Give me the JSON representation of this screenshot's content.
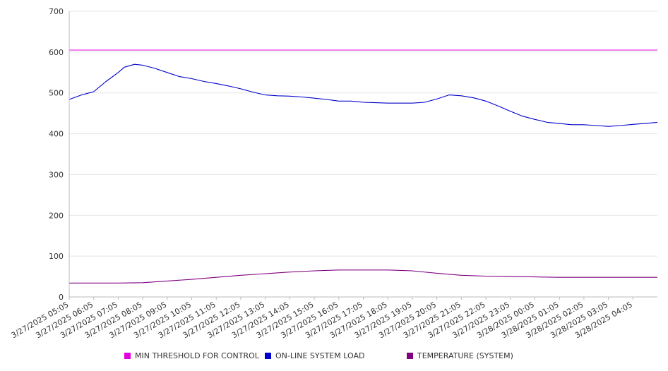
{
  "chart_data": {
    "type": "line",
    "title": "",
    "xlabel": "",
    "ylabel": "",
    "ylim": [
      0,
      700
    ],
    "yticks": [
      "0",
      "100",
      "200",
      "300",
      "400",
      "500",
      "600",
      "700"
    ],
    "grid": true,
    "legend_position": "bottom",
    "x_start": "3/27/2025 05:05",
    "x_end": "3/28/2025 05:05",
    "x_ticks": [
      "3/27/2025 05:05",
      "3/27/2025 06:05",
      "3/27/2025 07:05",
      "3/27/2025 08:05",
      "3/27/2025 09:05",
      "3/27/2025 10:05",
      "3/27/2025 11:05",
      "3/27/2025 12:05",
      "3/27/2025 13:05",
      "3/27/2025 14:05",
      "3/27/2025 15:05",
      "3/27/2025 16:05",
      "3/27/2025 17:05",
      "3/27/2025 18:05",
      "3/27/2025 19:05",
      "3/27/2025 20:05",
      "3/27/2025 21:05",
      "3/27/2025 22:05",
      "3/27/2025 23:05",
      "3/28/2025 00:05",
      "3/28/2025 01:05",
      "3/28/2025 02:05",
      "3/28/2025 03:05",
      "3/28/2025 04:05"
    ],
    "series": [
      {
        "name": "MIN THRESHOLD FOR CONTROL",
        "color": "#e000e0",
        "points": [
          [
            "3/27/2025 05:05",
            605
          ],
          [
            "3/28/2025 05:05",
            605
          ]
        ]
      },
      {
        "name": "ON-LINE SYSTEM LOAD",
        "color": "#0000cc",
        "points": [
          [
            "3/27/2025 05:05",
            484
          ],
          [
            "3/27/2025 05:35",
            495
          ],
          [
            "3/27/2025 06:05",
            503
          ],
          [
            "3/27/2025 06:35",
            528
          ],
          [
            "3/27/2025 07:05",
            550
          ],
          [
            "3/27/2025 07:20",
            563
          ],
          [
            "3/27/2025 07:45",
            570
          ],
          [
            "3/27/2025 08:05",
            568
          ],
          [
            "3/27/2025 08:35",
            560
          ],
          [
            "3/27/2025 09:05",
            550
          ],
          [
            "3/27/2025 09:35",
            540
          ],
          [
            "3/27/2025 10:05",
            535
          ],
          [
            "3/27/2025 10:35",
            528
          ],
          [
            "3/27/2025 11:05",
            523
          ],
          [
            "3/27/2025 11:35",
            517
          ],
          [
            "3/27/2025 12:05",
            510
          ],
          [
            "3/27/2025 12:35",
            502
          ],
          [
            "3/27/2025 13:05",
            495
          ],
          [
            "3/27/2025 13:35",
            493
          ],
          [
            "3/27/2025 14:05",
            492
          ],
          [
            "3/27/2025 14:35",
            490
          ],
          [
            "3/27/2025 15:05",
            487
          ],
          [
            "3/27/2025 15:35",
            484
          ],
          [
            "3/27/2025 16:05",
            480
          ],
          [
            "3/27/2025 16:35",
            480
          ],
          [
            "3/27/2025 17:05",
            477
          ],
          [
            "3/27/2025 17:35",
            476
          ],
          [
            "3/27/2025 18:05",
            475
          ],
          [
            "3/27/2025 18:35",
            475
          ],
          [
            "3/27/2025 19:05",
            475
          ],
          [
            "3/27/2025 19:35",
            477
          ],
          [
            "3/27/2025 20:05",
            485
          ],
          [
            "3/27/2025 20:35",
            495
          ],
          [
            "3/27/2025 21:05",
            493
          ],
          [
            "3/27/2025 21:35",
            488
          ],
          [
            "3/27/2025 22:05",
            480
          ],
          [
            "3/27/2025 22:35",
            468
          ],
          [
            "3/27/2025 23:05",
            455
          ],
          [
            "3/27/2025 23:35",
            443
          ],
          [
            "3/28/2025 00:05",
            435
          ],
          [
            "3/28/2025 00:35",
            428
          ],
          [
            "3/28/2025 01:05",
            425
          ],
          [
            "3/28/2025 01:35",
            422
          ],
          [
            "3/28/2025 02:05",
            422
          ],
          [
            "3/28/2025 02:35",
            420
          ],
          [
            "3/28/2025 03:05",
            418
          ],
          [
            "3/28/2025 03:35",
            420
          ],
          [
            "3/28/2025 04:05",
            423
          ],
          [
            "3/28/2025 04:35",
            425
          ],
          [
            "3/28/2025 05:05",
            428
          ]
        ]
      },
      {
        "name": "TEMPERATURE (SYSTEM)",
        "color": "#800080",
        "points": [
          [
            "3/27/2025 05:05",
            34
          ],
          [
            "3/27/2025 06:05",
            34
          ],
          [
            "3/27/2025 07:05",
            34
          ],
          [
            "3/27/2025 08:05",
            35
          ],
          [
            "3/27/2025 09:05",
            39
          ],
          [
            "3/27/2025 10:05",
            43
          ],
          [
            "3/27/2025 11:05",
            48
          ],
          [
            "3/27/2025 12:05",
            53
          ],
          [
            "3/27/2025 13:05",
            57
          ],
          [
            "3/27/2025 14:05",
            61
          ],
          [
            "3/27/2025 15:05",
            64
          ],
          [
            "3/27/2025 16:05",
            66
          ],
          [
            "3/27/2025 17:05",
            66
          ],
          [
            "3/27/2025 18:05",
            66
          ],
          [
            "3/27/2025 19:05",
            64
          ],
          [
            "3/27/2025 20:05",
            58
          ],
          [
            "3/27/2025 21:05",
            53
          ],
          [
            "3/27/2025 22:05",
            51
          ],
          [
            "3/27/2025 23:05",
            50
          ],
          [
            "3/28/2025 00:05",
            49
          ],
          [
            "3/28/2025 01:05",
            48
          ],
          [
            "3/28/2025 02:05",
            48
          ],
          [
            "3/28/2025 03:05",
            48
          ],
          [
            "3/28/2025 04:05",
            48
          ],
          [
            "3/28/2025 05:05",
            48
          ]
        ]
      }
    ]
  }
}
